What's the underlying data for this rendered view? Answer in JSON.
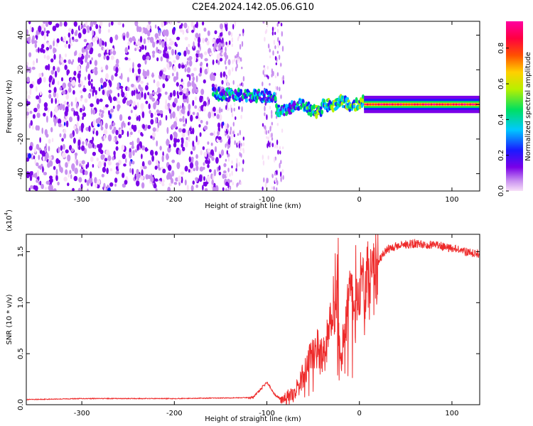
{
  "title": "C2E4.2024.142.05.06.G10",
  "colors": {
    "snr_line": "#ee2a2a",
    "axis": "#000000",
    "colormap": [
      "#f8e0f8",
      "#c890f0",
      "#7a00e8",
      "#1a1aff",
      "#00c8ff",
      "#00e060",
      "#b8f000",
      "#ffd000",
      "#ff5000",
      "#ff0040",
      "#ff00a0"
    ]
  },
  "chart_data": [
    {
      "type": "heatmap",
      "xlabel": "Height of straight line (km)",
      "ylabel": "Frequency (Hz)",
      "xlim": [
        -360,
        130
      ],
      "ylim": [
        -50,
        48
      ],
      "xticks": [
        -300,
        -200,
        -100,
        0,
        100
      ],
      "yticks": [
        -40,
        -20,
        0,
        20,
        40
      ],
      "colorbar": {
        "label": "Normalized spectral amplitude",
        "range": [
          0,
          0.95
        ],
        "ticks": [
          "0.0",
          "0.2",
          "0.4",
          "0.6",
          "0.8"
        ]
      },
      "regions": [
        {
          "x_range": [
            -360,
            -160
          ],
          "frequency_range": [
            -50,
            48
          ],
          "amplitude": "0.0-0.3 (scattered noise)"
        },
        {
          "x_range": [
            -160,
            0
          ],
          "frequency_center": [
            7,
            0
          ],
          "amplitude": "0.2-0.7 (emerging tone)"
        },
        {
          "x_range": [
            0,
            130
          ],
          "frequency_center": 0,
          "amplitude": "0.8-0.95 (steady tone)"
        }
      ]
    },
    {
      "type": "line",
      "xlabel": "Height of straight line (km)",
      "ylabel": "SNR (10 * v/v)",
      "yscale_label": "(x10",
      "yscale_exp": "4",
      "yscale_close": ")",
      "xlim": [
        -360,
        130
      ],
      "ylim": [
        0,
        1.67
      ],
      "xticks": [
        -300,
        -200,
        -100,
        0,
        100
      ],
      "yticks": [
        "0.0",
        "0.5",
        "1.0",
        "1.5"
      ],
      "series": [
        {
          "x": [
            -360,
            -300,
            -200,
            -115,
            -100,
            -90,
            -80,
            -70,
            -60,
            -50,
            -45,
            -40,
            -35,
            -30,
            -25,
            -20,
            -15,
            -10,
            -5,
            0,
            5,
            10,
            15,
            20,
            25,
            30,
            40,
            50,
            60,
            70,
            80,
            90,
            100,
            110,
            120,
            130
          ],
          "y": [
            0.05,
            0.06,
            0.06,
            0.07,
            0.22,
            0.08,
            0.05,
            0.1,
            0.3,
            0.5,
            0.55,
            0.45,
            0.7,
            0.95,
            1.0,
            0.35,
            0.85,
            1.0,
            0.9,
            1.1,
            1.2,
            1.25,
            1.3,
            1.4,
            1.47,
            1.52,
            1.56,
            1.57,
            1.58,
            1.57,
            1.57,
            1.55,
            1.53,
            1.51,
            1.49,
            1.47
          ]
        }
      ]
    }
  ]
}
